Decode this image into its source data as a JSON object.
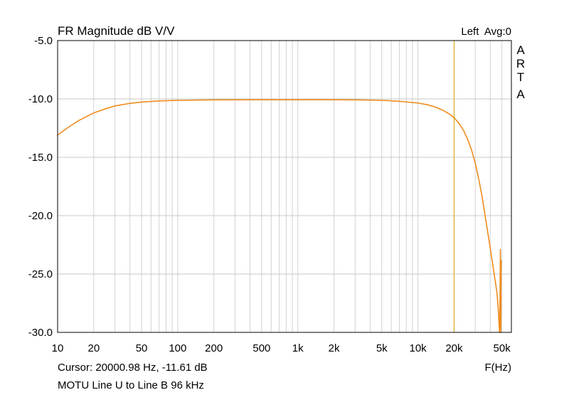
{
  "chart_data": {
    "type": "line",
    "title": "FR Magnitude dB V/V",
    "channel_label": "Left  Avg:0",
    "brand_letters": [
      "A",
      "R",
      "T",
      "A"
    ],
    "xlabel": "F(Hz)",
    "x_scale": "log",
    "xlim": [
      10,
      60000
    ],
    "ylim": [
      -30,
      -5
    ],
    "y_ticks": [
      -5,
      -10,
      -15,
      -20,
      -25,
      -30
    ],
    "y_tick_labels": [
      "-5.0",
      "-10.0",
      "-15.0",
      "-20.0",
      "-25.0",
      "-30.0"
    ],
    "x_tick_values": [
      10,
      20,
      50,
      100,
      200,
      500,
      1000,
      2000,
      5000,
      10000,
      20000,
      50000
    ],
    "x_tick_labels": [
      "10",
      "20",
      "50",
      "100",
      "200",
      "500",
      "1k",
      "2k",
      "5k",
      "10k",
      "20k",
      "50k"
    ],
    "grid": true,
    "cursor": {
      "x": 20000.98,
      "text": "Cursor: 20000.98 Hz, -11.61 dB"
    },
    "caption": "MOTU Line U to Line B 96 kHz",
    "series": [
      {
        "color": "#f08c1e",
        "x": [
          10,
          12,
          15,
          20,
          25,
          30,
          40,
          50,
          70,
          100,
          200,
          500,
          1000,
          2000,
          3000,
          5000,
          7000,
          10000,
          12000,
          14000,
          16000,
          18000,
          20000,
          22000,
          24000,
          26000,
          28000,
          30000,
          32000,
          34000,
          36000,
          38000,
          40000,
          42000,
          44000,
          45500,
          46500,
          47200,
          47800,
          48300,
          48600,
          48800,
          49000,
          49200,
          49400
        ],
        "y": [
          -13.1,
          -12.5,
          -11.85,
          -11.2,
          -10.85,
          -10.6,
          -10.38,
          -10.27,
          -10.17,
          -10.12,
          -10.08,
          -10.07,
          -10.07,
          -10.07,
          -10.08,
          -10.12,
          -10.2,
          -10.35,
          -10.5,
          -10.7,
          -10.95,
          -11.25,
          -11.61,
          -12.1,
          -12.7,
          -13.5,
          -14.4,
          -15.5,
          -16.8,
          -18.2,
          -19.8,
          -21.3,
          -22.8,
          -24.2,
          -25.6,
          -26.6,
          -27.8,
          -29.0,
          -30.0,
          -26.5,
          -22.9,
          -27.5,
          -30.0,
          -25.0,
          -23.8
        ]
      }
    ]
  }
}
